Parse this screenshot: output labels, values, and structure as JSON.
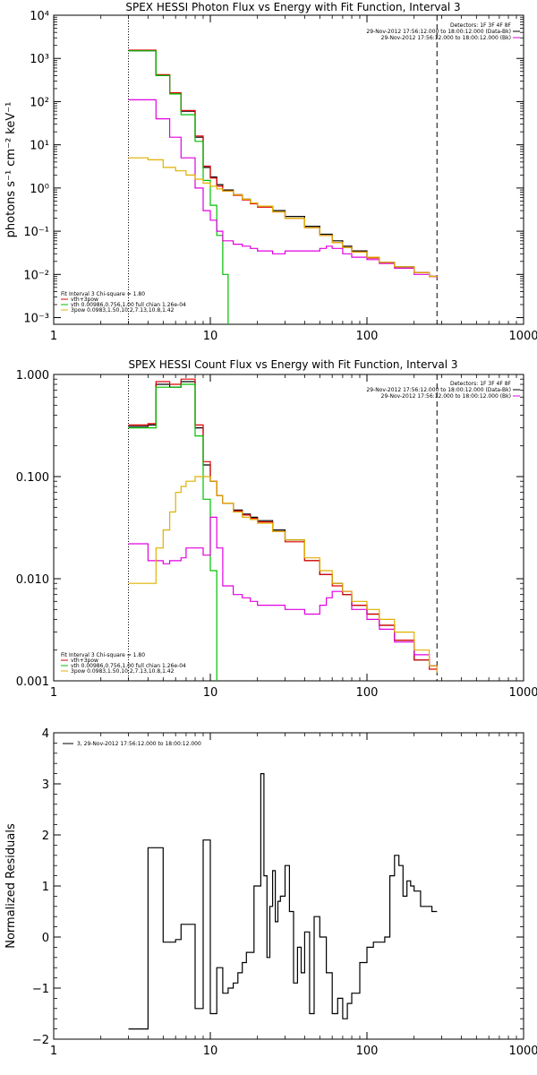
{
  "chart_data": [
    {
      "type": "line",
      "title": "SPEX HESSI Photon Flux vs Energy with Fit Function, Interval 3",
      "ylabel": "photons s⁻¹ cm⁻² keV⁻¹",
      "xlabel": "",
      "xscale": "log",
      "yscale": "log",
      "xlim": [
        1,
        1000
      ],
      "ylim": [
        0.0007,
        10000
      ],
      "xticks": [
        1,
        10,
        100,
        1000
      ],
      "xtick_labels": [
        "1",
        "10",
        "100",
        "1000"
      ],
      "yticks": [
        0.001,
        0.01,
        0.1,
        1,
        10,
        100,
        1000,
        10000
      ],
      "ytick_labels": [
        "10⁻³",
        "10⁻²",
        "10⁻¹",
        "10⁰",
        "10¹",
        "10²",
        "10³",
        "10⁴"
      ],
      "vlines": [
        {
          "x": 3,
          "style": "dotted"
        },
        {
          "x": 280,
          "style": "dashed"
        }
      ],
      "header_text": [
        "Detectors: 1F 3F 4F 8F",
        "29-Nov-2012 17:56:12.000 to 18:00:12.000 (Data-Bk)",
        "29-Nov-2012 17:56:12.000 to 18:00:12.000 (Bk)"
      ],
      "fit_text": [
        "Fit Interval 3   Chi-square = 1.80",
        "vth+3pow",
        "vth 0.00986,0.756,1.00  full chian 1.26e-04",
        "3pow 0.0983,1.50,10.2,7.13,10.8,1.42"
      ],
      "series": [
        {
          "color": "#000000",
          "x": [
            3,
            3.5,
            4,
            4.5,
            5,
            5.5,
            6,
            6.5,
            7,
            8,
            9,
            10,
            11,
            12,
            14,
            16,
            18,
            20,
            25,
            30,
            40,
            50,
            60,
            70,
            80,
            100,
            120,
            150,
            200,
            250,
            280
          ],
          "y": [
            1500,
            1500,
            1500,
            400,
            400,
            150,
            150,
            60,
            60,
            15,
            3,
            1.8,
            1.2,
            0.9,
            0.7,
            0.55,
            0.45,
            0.38,
            0.3,
            0.22,
            0.13,
            0.085,
            0.06,
            0.045,
            0.035,
            0.025,
            0.019,
            0.015,
            0.011,
            0.009,
            0.009
          ]
        },
        {
          "color": "#e00000",
          "x": [
            3,
            3.5,
            4,
            4.5,
            5,
            5.5,
            6,
            6.5,
            7,
            8,
            9,
            10,
            11,
            12,
            14,
            16,
            18,
            20,
            25,
            30,
            40,
            50,
            60,
            70,
            80,
            100,
            120,
            150,
            200,
            250,
            280
          ],
          "y": [
            1550,
            1550,
            1550,
            420,
            420,
            160,
            160,
            62,
            62,
            16,
            3.2,
            1.7,
            1.1,
            0.85,
            0.68,
            0.53,
            0.43,
            0.36,
            0.28,
            0.2,
            0.12,
            0.08,
            0.055,
            0.042,
            0.033,
            0.024,
            0.018,
            0.014,
            0.011,
            0.009,
            0.009
          ]
        },
        {
          "color": "#00c000",
          "x": [
            3,
            3.5,
            4,
            4.5,
            5,
            5.5,
            6,
            6.5,
            7,
            8,
            9,
            10,
            11,
            12,
            13
          ],
          "y": [
            1500,
            1500,
            1500,
            400,
            400,
            150,
            150,
            50,
            50,
            12,
            1.5,
            0.4,
            0.08,
            0.01,
            0.0007
          ]
        },
        {
          "color": "#e000e0",
          "x": [
            3,
            3.5,
            4,
            4.5,
            5,
            5.5,
            6,
            6.5,
            7,
            8,
            9,
            10,
            11,
            12,
            14,
            16,
            18,
            20,
            25,
            30,
            40,
            50,
            55,
            60,
            70,
            80,
            100,
            120,
            150,
            200,
            250,
            280
          ],
          "y": [
            110,
            110,
            110,
            40,
            40,
            15,
            15,
            5,
            5,
            1,
            0.3,
            0.18,
            0.1,
            0.06,
            0.05,
            0.045,
            0.04,
            0.035,
            0.03,
            0.035,
            0.035,
            0.04,
            0.045,
            0.04,
            0.03,
            0.025,
            0.022,
            0.018,
            0.014,
            0.01,
            0.009,
            0.008
          ]
        },
        {
          "color": "#e0b000",
          "x": [
            3,
            4,
            5,
            6,
            7,
            8,
            9,
            10,
            11,
            12,
            14,
            16,
            18,
            20,
            25,
            30,
            40,
            50,
            60,
            70,
            80,
            100,
            120,
            150,
            200,
            250,
            280
          ],
          "y": [
            5,
            4.5,
            3,
            2.5,
            2,
            1.6,
            1.3,
            1.1,
            0.95,
            0.85,
            0.7,
            0.55,
            0.45,
            0.38,
            0.28,
            0.2,
            0.12,
            0.08,
            0.055,
            0.042,
            0.033,
            0.025,
            0.019,
            0.015,
            0.011,
            0.009,
            0.009
          ]
        }
      ]
    },
    {
      "type": "line",
      "title": "SPEX HESSI Count Flux vs Energy with Fit Function, Interval 3",
      "ylabel": "",
      "xlabel": "",
      "xscale": "log",
      "yscale": "log",
      "xlim": [
        1,
        1000
      ],
      "ylim": [
        0.001,
        1.0
      ],
      "xticks": [
        1,
        10,
        100,
        1000
      ],
      "xtick_labels": [
        "1",
        "10",
        "100",
        "1000"
      ],
      "yticks": [
        0.001,
        0.01,
        0.1,
        1.0
      ],
      "ytick_labels": [
        "0.001",
        "0.010",
        "0.100",
        "1.000"
      ],
      "vlines": [
        {
          "x": 3,
          "style": "dotted"
        },
        {
          "x": 280,
          "style": "dashed"
        }
      ],
      "header_text": [
        "Detectors: 1F 3F 4F 8F",
        "29-Nov-2012 17:56:12.000 to 18:00:12.000 (Data-Bk)",
        "29-Nov-2012 17:56:12.000 to 18:00:12.000 (Bk)"
      ],
      "fit_text": [
        "Fit Interval 3   Chi-square = 1.80",
        "vth+3pow",
        "vth 0.00986,0.756,1.00  full chian 1.26e-04",
        "3pow 0.0983,1.50,10.2,7.13,10.8,1.42"
      ],
      "series": [
        {
          "color": "#000000",
          "x": [
            3,
            3.5,
            4,
            4.5,
            5,
            5.5,
            6,
            6.5,
            7,
            8,
            9,
            10,
            11,
            12,
            14,
            16,
            18,
            20,
            25,
            30,
            40,
            50,
            60,
            70,
            80,
            100,
            120,
            150,
            200,
            250,
            280
          ],
          "y": [
            0.31,
            0.31,
            0.32,
            0.8,
            0.8,
            0.75,
            0.75,
            0.85,
            0.85,
            0.3,
            0.13,
            0.09,
            0.065,
            0.055,
            0.047,
            0.043,
            0.04,
            0.037,
            0.03,
            0.024,
            0.015,
            0.011,
            0.009,
            0.007,
            0.0055,
            0.0045,
            0.0035,
            0.0025,
            0.0016,
            0.0014,
            0.0014
          ]
        },
        {
          "color": "#e00000",
          "x": [
            3,
            3.5,
            4,
            4.5,
            5,
            5.5,
            6,
            6.5,
            7,
            8,
            9,
            10,
            11,
            12,
            14,
            16,
            18,
            20,
            25,
            30,
            40,
            50,
            60,
            70,
            80,
            100,
            120,
            150,
            200,
            250,
            280
          ],
          "y": [
            0.32,
            0.32,
            0.33,
            0.85,
            0.85,
            0.8,
            0.8,
            0.9,
            0.9,
            0.32,
            0.14,
            0.09,
            0.065,
            0.055,
            0.046,
            0.042,
            0.039,
            0.036,
            0.029,
            0.023,
            0.015,
            0.011,
            0.0085,
            0.007,
            0.0055,
            0.0045,
            0.0035,
            0.0025,
            0.0016,
            0.0013,
            0.0013
          ]
        },
        {
          "color": "#00c000",
          "x": [
            3,
            3.5,
            4,
            4.5,
            5,
            5.5,
            6,
            6.5,
            7,
            8,
            9,
            10,
            11
          ],
          "y": [
            0.3,
            0.3,
            0.3,
            0.75,
            0.75,
            0.75,
            0.75,
            0.8,
            0.8,
            0.25,
            0.06,
            0.012,
            0.001
          ]
        },
        {
          "color": "#e000e0",
          "x": [
            3,
            3.5,
            4,
            4.5,
            5,
            5.5,
            6,
            6.5,
            7,
            8,
            9,
            10,
            11,
            12,
            14,
            16,
            18,
            20,
            25,
            30,
            40,
            50,
            55,
            60,
            70,
            80,
            100,
            120,
            150,
            200,
            250,
            280
          ],
          "y": [
            0.022,
            0.022,
            0.015,
            0.015,
            0.014,
            0.015,
            0.015,
            0.016,
            0.02,
            0.02,
            0.017,
            0.04,
            0.02,
            0.0085,
            0.007,
            0.0065,
            0.006,
            0.0055,
            0.0055,
            0.005,
            0.0045,
            0.0055,
            0.0065,
            0.0075,
            0.0075,
            0.005,
            0.004,
            0.0032,
            0.0024,
            0.0018,
            0.0014,
            0.0013
          ]
        },
        {
          "color": "#e0b000",
          "x": [
            3,
            3.5,
            4,
            4.5,
            5,
            5.5,
            6,
            6.5,
            7,
            8,
            9,
            10,
            11,
            12,
            14,
            16,
            18,
            20,
            25,
            30,
            40,
            50,
            60,
            70,
            80,
            100,
            120,
            150,
            200,
            250,
            280
          ],
          "y": [
            0.009,
            0.009,
            0.009,
            0.02,
            0.03,
            0.045,
            0.07,
            0.08,
            0.09,
            0.1,
            0.1,
            0.09,
            0.065,
            0.055,
            0.045,
            0.04,
            0.038,
            0.035,
            0.029,
            0.024,
            0.016,
            0.012,
            0.009,
            0.0075,
            0.006,
            0.005,
            0.004,
            0.003,
            0.002,
            0.0014,
            0.0012
          ]
        }
      ]
    },
    {
      "type": "line",
      "title": "",
      "ylabel": "Normalized Residuals",
      "xlabel": "",
      "xscale": "log",
      "yscale": "linear",
      "xlim": [
        1,
        1000
      ],
      "ylim": [
        -2,
        4
      ],
      "xticks": [
        1,
        10,
        100,
        1000
      ],
      "xtick_labels": [
        "1",
        "10",
        "100",
        "1000"
      ],
      "yticks": [
        -2,
        -1,
        0,
        1,
        2,
        3,
        4
      ],
      "ytick_labels": [
        "−2",
        "−1",
        "0",
        "1",
        "2",
        "3",
        "4"
      ],
      "legend": [
        "3, 29-Nov-2012 17:56:12.000 to 18:00:12.000"
      ],
      "series": [
        {
          "color": "#000000",
          "x": [
            3,
            4,
            4.5,
            5,
            5.5,
            6,
            6.5,
            7,
            8,
            9,
            9.5,
            10,
            11,
            12,
            13,
            14,
            15,
            16,
            17,
            18,
            19,
            20,
            21,
            22,
            23,
            24,
            25,
            26,
            27,
            28,
            30,
            32,
            34,
            36,
            38,
            40,
            43,
            46,
            50,
            55,
            60,
            65,
            70,
            75,
            80,
            90,
            100,
            110,
            120,
            130,
            140,
            150,
            160,
            170,
            180,
            190,
            200,
            220,
            240,
            260,
            280
          ],
          "y": [
            -1.8,
            1.75,
            1.75,
            -0.1,
            -0.1,
            -0.05,
            0.25,
            0.25,
            -1.4,
            1.9,
            1.9,
            -1.5,
            -0.6,
            -1.1,
            -1.0,
            -0.9,
            -0.7,
            -0.5,
            -0.3,
            -0.3,
            1.0,
            1.0,
            3.2,
            1.2,
            -0.4,
            0.6,
            1.3,
            0.3,
            0.7,
            0.8,
            1.4,
            0.5,
            -0.9,
            -0.2,
            -0.7,
            0.1,
            -1.5,
            0.4,
            0.0,
            -0.7,
            -1.5,
            -1.2,
            -1.6,
            -1.3,
            -1.1,
            -0.5,
            -0.2,
            -0.1,
            -0.1,
            0.0,
            1.2,
            1.6,
            1.4,
            0.8,
            1.1,
            1.0,
            0.9,
            0.6,
            0.6,
            0.5,
            0.5
          ]
        }
      ]
    }
  ]
}
